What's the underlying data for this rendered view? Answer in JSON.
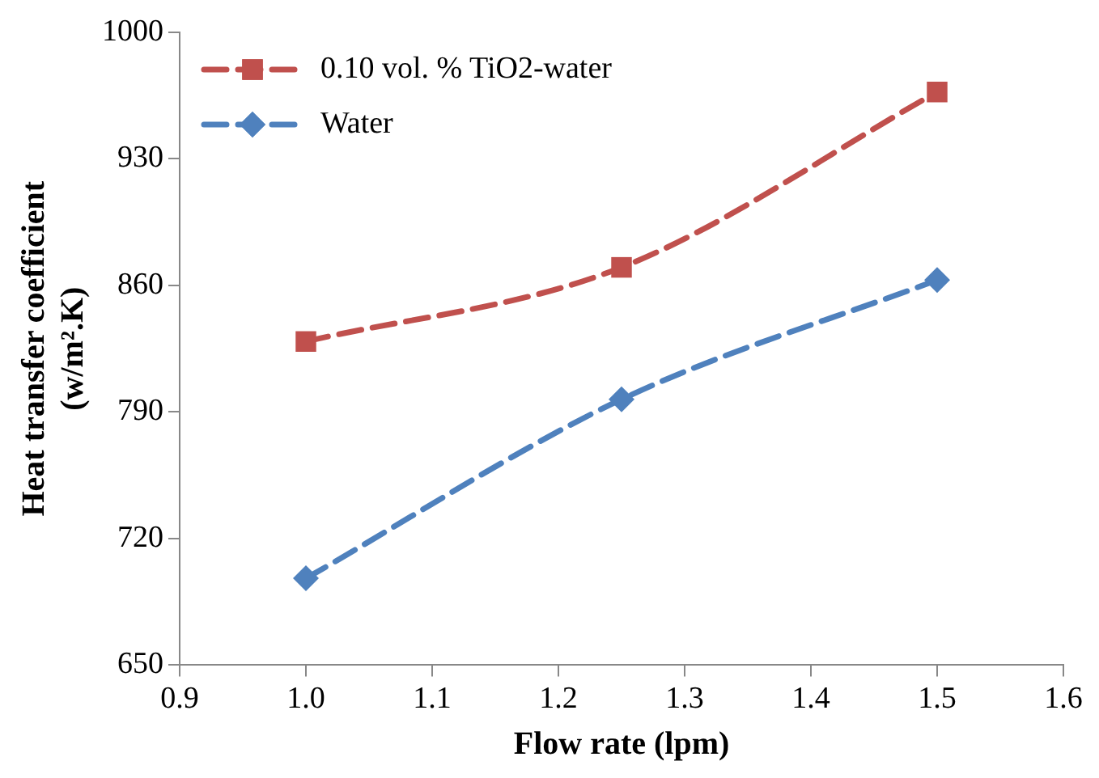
{
  "chart_data": {
    "type": "line",
    "xlabel": "Flow rate (lpm)",
    "ylabel": "Heat transfer coefficient (w/m².K)",
    "xlim": [
      0.9,
      1.6
    ],
    "xticks": [
      0.9,
      {
        "value": 1,
        "label": "1.0"
      },
      1.1,
      1.2,
      1.3,
      1.4,
      1.5,
      1.6
    ],
    "ylim": [
      650,
      1000
    ],
    "yticks": [
      650,
      720,
      790,
      860,
      930,
      1000
    ],
    "grid": false,
    "legend": "top left",
    "line_style": "dashed",
    "series": [
      {
        "name": "0.10 vol. % TiO2-water",
        "color": "#c0504d",
        "marker": "square",
        "x": [
          1.0,
          1.25,
          1.5
        ],
        "values": [
          829,
          870,
          967
        ]
      },
      {
        "name": "Water",
        "color": "#4f81bd",
        "marker": "diamond",
        "x": [
          1.0,
          1.25,
          1.5
        ],
        "values": [
          698,
          797,
          863
        ]
      }
    ]
  }
}
